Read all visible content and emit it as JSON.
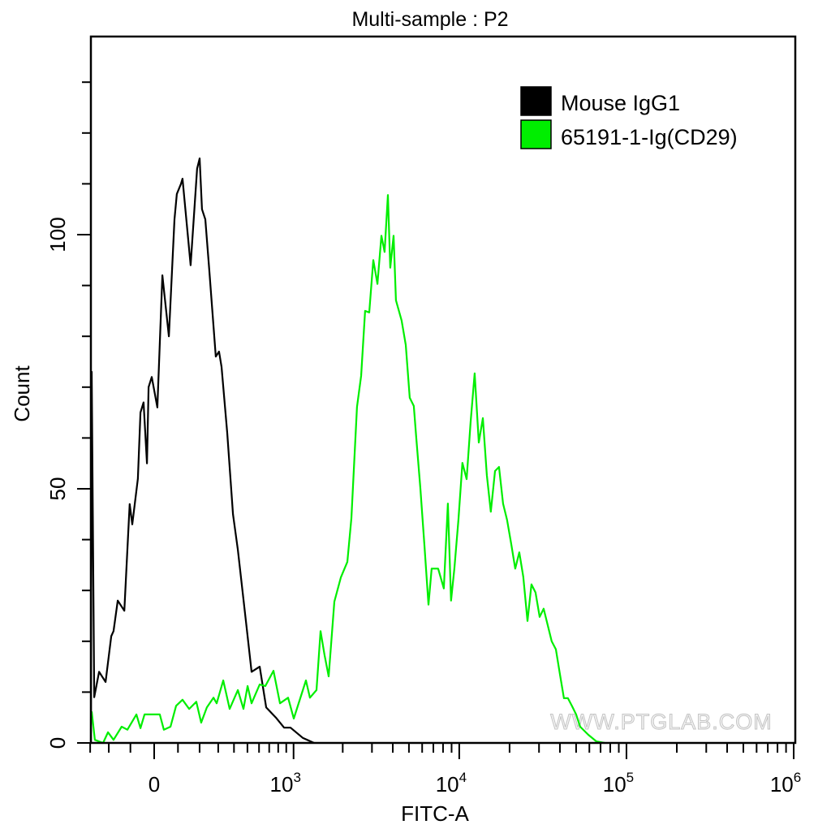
{
  "chart_data": {
    "type": "line",
    "title": "Multi-sample : P2",
    "xlabel": "FITC-A",
    "ylabel": "Count",
    "x_scale": "biexponential",
    "xlim": [
      -300,
      1000000
    ],
    "ylim": [
      0,
      138
    ],
    "x_ticks": [
      {
        "value": 0,
        "base": "0",
        "exp": ""
      },
      {
        "value": 1000,
        "base": "10",
        "exp": "3"
      },
      {
        "value": 10000,
        "base": "10",
        "exp": "4"
      },
      {
        "value": 100000,
        "base": "10",
        "exp": "5"
      },
      {
        "value": 1000000,
        "base": "10",
        "exp": "6"
      }
    ],
    "y_ticks": [
      {
        "value": 0,
        "label": "0"
      },
      {
        "value": 50,
        "label": "50"
      },
      {
        "value": 100,
        "label": "100"
      }
    ],
    "grid": false,
    "legend_position": "top-right",
    "watermark": "WWW.PTGLAB.COM",
    "series": [
      {
        "name": "Mouse IgG1",
        "color": "#000000",
        "points": [
          [
            -296,
            0
          ],
          [
            -291,
            73
          ],
          [
            -277,
            9
          ],
          [
            -250,
            14
          ],
          [
            -216,
            12
          ],
          [
            -188,
            21
          ],
          [
            -177,
            22
          ],
          [
            -157,
            28
          ],
          [
            -127,
            26
          ],
          [
            -110,
            41
          ],
          [
            -103,
            47
          ],
          [
            -92,
            43
          ],
          [
            -68,
            52
          ],
          [
            -57,
            65
          ],
          [
            -44,
            67
          ],
          [
            -30,
            55
          ],
          [
            -23,
            70
          ],
          [
            -10,
            72
          ],
          [
            13,
            66
          ],
          [
            34,
            92
          ],
          [
            61,
            80
          ],
          [
            85,
            103
          ],
          [
            95,
            108
          ],
          [
            113,
            110
          ],
          [
            120,
            111
          ],
          [
            157,
            94
          ],
          [
            188,
            113
          ],
          [
            200,
            115
          ],
          [
            212,
            105
          ],
          [
            229,
            103
          ],
          [
            250,
            93
          ],
          [
            286,
            76
          ],
          [
            305,
            77
          ],
          [
            320,
            74
          ],
          [
            355,
            61
          ],
          [
            393,
            45
          ],
          [
            427,
            38
          ],
          [
            488,
            24
          ],
          [
            534,
            14
          ],
          [
            606,
            15
          ],
          [
            669,
            7
          ],
          [
            773,
            5
          ],
          [
            872,
            3
          ],
          [
            957,
            3
          ],
          [
            1140,
            1
          ],
          [
            1338,
            0
          ]
        ]
      },
      {
        "name": "65191-1-Ig(CD29)",
        "color": "#00ee00",
        "points": [
          [
            -291,
            6.2
          ],
          [
            -273,
            0.6
          ],
          [
            -229,
            0
          ],
          [
            -204,
            2.1
          ],
          [
            -177,
            0.6
          ],
          [
            -139,
            3.2
          ],
          [
            -113,
            2.6
          ],
          [
            -74,
            5.6
          ],
          [
            -57,
            2.9
          ],
          [
            -40,
            5.6
          ],
          [
            23,
            5.6
          ],
          [
            40,
            2.6
          ],
          [
            68,
            3.2
          ],
          [
            92,
            7.3
          ],
          [
            120,
            8.5
          ],
          [
            150,
            6.7
          ],
          [
            184,
            8.1
          ],
          [
            208,
            4.0
          ],
          [
            237,
            7.0
          ],
          [
            273,
            8.9
          ],
          [
            291,
            7.8
          ],
          [
            330,
            12.3
          ],
          [
            371,
            6.7
          ],
          [
            427,
            10.4
          ],
          [
            469,
            6.7
          ],
          [
            501,
            11.2
          ],
          [
            534,
            7.8
          ],
          [
            606,
            11.5
          ],
          [
            661,
            11.2
          ],
          [
            746,
            14.2
          ],
          [
            821,
            7.8
          ],
          [
            924,
            8.9
          ],
          [
            1003,
            4.8
          ],
          [
            1193,
            12.3
          ],
          [
            1263,
            8.9
          ],
          [
            1386,
            10.4
          ],
          [
            1467,
            22.0
          ],
          [
            1551,
            17.3
          ],
          [
            1643,
            13.1
          ],
          [
            1779,
            27.8
          ],
          [
            1950,
            32.6
          ],
          [
            2133,
            35.6
          ],
          [
            2256,
            44.2
          ],
          [
            2439,
            66.1
          ],
          [
            2583,
            72.2
          ],
          [
            2730,
            85.0
          ],
          [
            2891,
            84.7
          ],
          [
            3055,
            95.0
          ],
          [
            3236,
            90.3
          ],
          [
            3420,
            99.8
          ],
          [
            3573,
            96.6
          ],
          [
            3741,
            107.8
          ],
          [
            3864,
            93.5
          ],
          [
            4046,
            99.8
          ],
          [
            4178,
            87.1
          ],
          [
            4519,
            83.1
          ],
          [
            4786,
            78.3
          ],
          [
            5058,
            67.9
          ],
          [
            5346,
            66.3
          ],
          [
            5534,
            59.9
          ],
          [
            5848,
            50.3
          ],
          [
            6180,
            39.1
          ],
          [
            6546,
            27.2
          ],
          [
            6839,
            34.3
          ],
          [
            7482,
            34.3
          ],
          [
            8091,
            30.4
          ],
          [
            8551,
            47.1
          ],
          [
            8933,
            28.0
          ],
          [
            9354,
            34.3
          ],
          [
            9886,
            43.9
          ],
          [
            10450,
            55.1
          ],
          [
            11070,
            51.9
          ],
          [
            11700,
            63.1
          ],
          [
            12360,
            72.7
          ],
          [
            13090,
            59.1
          ],
          [
            13840,
            63.9
          ],
          [
            14620,
            52.7
          ],
          [
            15450,
            45.5
          ],
          [
            16370,
            53.5
          ],
          [
            17300,
            54.3
          ],
          [
            18280,
            47.1
          ],
          [
            19320,
            43.9
          ],
          [
            20460,
            39.1
          ],
          [
            21630,
            34.3
          ],
          [
            22860,
            37.5
          ],
          [
            24150,
            32.7
          ],
          [
            25590,
            24.0
          ],
          [
            27040,
            31.2
          ],
          [
            28580,
            29.6
          ],
          [
            30270,
            24.8
          ],
          [
            31990,
            26.4
          ],
          [
            33810,
            23.2
          ],
          [
            35730,
            20.0
          ],
          [
            37840,
            18.4
          ],
          [
            39990,
            13.6
          ],
          [
            42270,
            8.8
          ],
          [
            44670,
            8.8
          ],
          [
            47320,
            7.2
          ],
          [
            50000,
            5.6
          ],
          [
            52840,
            3.2
          ],
          [
            59160,
            1.6
          ],
          [
            66070,
            0.3
          ],
          [
            73960,
            0
          ]
        ]
      }
    ]
  }
}
